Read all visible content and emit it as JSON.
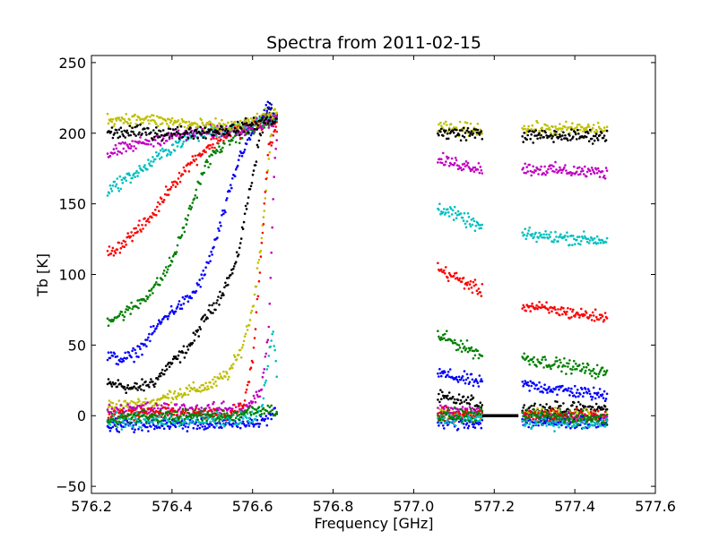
{
  "chart_data": {
    "type": "scatter",
    "title": "Spectra from 2011-02-15",
    "xlabel": "Frequency [GHz]",
    "ylabel": "Tb [K]",
    "xlim": [
      576.2,
      577.6
    ],
    "ylim": [
      -55,
      255
    ],
    "x_ticks": [
      "576.2",
      "576.4",
      "576.6",
      "576.8",
      "577.0",
      "577.2",
      "577.4",
      "577.6"
    ],
    "y_ticks": [
      "250",
      "200",
      "150",
      "100",
      "50",
      "0",
      "−50"
    ],
    "grid": false,
    "legend": "none",
    "line_segment": {
      "x": [
        577.17,
        577.26
      ],
      "y": [
        0,
        0
      ],
      "color": "#000000"
    },
    "series": [
      {
        "color": "#000000",
        "left": [
          [
            576.24,
            22
          ],
          [
            576.27,
            22
          ],
          [
            576.3,
            19
          ],
          [
            576.33,
            21
          ],
          [
            576.36,
            25
          ],
          [
            576.39,
            35
          ],
          [
            576.42,
            42
          ],
          [
            576.45,
            52
          ],
          [
            576.48,
            68
          ],
          [
            576.52,
            85
          ],
          [
            576.56,
            108
          ],
          [
            576.58,
            140
          ],
          [
            576.6,
            170
          ],
          [
            576.62,
            200
          ],
          [
            576.64,
            218
          ],
          [
            576.66,
            210
          ]
        ],
        "mid": [
          [
            577.06,
            13
          ],
          [
            577.17,
            8
          ]
        ],
        "right": [
          [
            577.27,
            5
          ],
          [
            577.48,
            5
          ]
        ]
      },
      {
        "color": "#bfbf00",
        "left": [
          [
            576.24,
            7
          ],
          [
            576.3,
            7
          ],
          [
            576.36,
            10
          ],
          [
            576.4,
            15
          ],
          [
            576.45,
            18
          ],
          [
            576.5,
            22
          ],
          [
            576.54,
            30
          ],
          [
            576.57,
            45
          ],
          [
            576.6,
            75
          ],
          [
            576.62,
            120
          ],
          [
            576.64,
            180
          ],
          [
            576.65,
            215
          ],
          [
            576.66,
            210
          ]
        ],
        "mid": [
          [
            577.06,
            2
          ],
          [
            577.17,
            0
          ]
        ],
        "right": [
          [
            577.27,
            1
          ],
          [
            577.48,
            0
          ]
        ]
      },
      {
        "color": "#0000ff",
        "left": [
          [
            576.24,
            42
          ],
          [
            576.27,
            40
          ],
          [
            576.3,
            42
          ],
          [
            576.33,
            50
          ],
          [
            576.36,
            62
          ],
          [
            576.39,
            72
          ],
          [
            576.42,
            78
          ],
          [
            576.45,
            85
          ],
          [
            576.48,
            100
          ],
          [
            576.51,
            125
          ],
          [
            576.54,
            155
          ],
          [
            576.57,
            185
          ],
          [
            576.6,
            200
          ],
          [
            576.64,
            218
          ],
          [
            576.66,
            210
          ]
        ],
        "mid": [
          [
            577.06,
            30
          ],
          [
            577.17,
            23
          ]
        ],
        "right": [
          [
            577.27,
            22
          ],
          [
            577.48,
            14
          ]
        ]
      },
      {
        "color": "#008000",
        "left": [
          [
            576.24,
            68
          ],
          [
            576.28,
            72
          ],
          [
            576.31,
            78
          ],
          [
            576.34,
            86
          ],
          [
            576.37,
            95
          ],
          [
            576.4,
            110
          ],
          [
            576.42,
            125
          ],
          [
            576.45,
            150
          ],
          [
            576.48,
            175
          ],
          [
            576.51,
            188
          ],
          [
            576.54,
            195
          ],
          [
            576.58,
            200
          ],
          [
            576.62,
            205
          ],
          [
            576.66,
            210
          ]
        ],
        "mid": [
          [
            577.06,
            57
          ],
          [
            577.17,
            43
          ]
        ],
        "right": [
          [
            577.27,
            41
          ],
          [
            577.48,
            30
          ]
        ]
      },
      {
        "color": "#ff0000",
        "left": [
          [
            576.24,
            115
          ],
          [
            576.27,
            120
          ],
          [
            576.3,
            128
          ],
          [
            576.33,
            135
          ],
          [
            576.36,
            145
          ],
          [
            576.39,
            160
          ],
          [
            576.42,
            170
          ],
          [
            576.45,
            180
          ],
          [
            576.48,
            188
          ],
          [
            576.51,
            195
          ],
          [
            576.54,
            200
          ],
          [
            576.58,
            203
          ],
          [
            576.62,
            207
          ],
          [
            576.66,
            210
          ]
        ],
        "mid": [
          [
            577.06,
            104
          ],
          [
            577.17,
            88
          ]
        ],
        "right": [
          [
            577.27,
            78
          ],
          [
            577.48,
            69
          ]
        ]
      },
      {
        "color": "#00bfbf",
        "left": [
          [
            576.24,
            160
          ],
          [
            576.27,
            165
          ],
          [
            576.3,
            170
          ],
          [
            576.33,
            175
          ],
          [
            576.36,
            182
          ],
          [
            576.4,
            190
          ],
          [
            576.44,
            197
          ],
          [
            576.48,
            200
          ],
          [
            576.54,
            203
          ],
          [
            576.6,
            206
          ],
          [
            576.66,
            210
          ]
        ],
        "mid": [
          [
            577.06,
            148
          ],
          [
            577.17,
            133
          ]
        ],
        "right": [
          [
            577.27,
            128
          ],
          [
            577.48,
            124
          ]
        ]
      },
      {
        "color": "#bf00bf",
        "left": [
          [
            576.24,
            185
          ],
          [
            576.28,
            189
          ],
          [
            576.32,
            193
          ],
          [
            576.36,
            196
          ],
          [
            576.4,
            198
          ],
          [
            576.46,
            200
          ],
          [
            576.54,
            202
          ],
          [
            576.6,
            205
          ],
          [
            576.66,
            210
          ]
        ],
        "mid": [
          [
            577.06,
            181
          ],
          [
            577.17,
            175
          ]
        ],
        "right": [
          [
            577.27,
            175
          ],
          [
            577.48,
            172
          ]
        ]
      },
      {
        "color": "#bfbf00",
        "left": [
          [
            576.24,
            210
          ],
          [
            576.32,
            210
          ],
          [
            576.4,
            208
          ],
          [
            576.48,
            205
          ],
          [
            576.56,
            205
          ],
          [
            576.62,
            210
          ],
          [
            576.66,
            215
          ]
        ],
        "mid": [
          [
            577.06,
            203
          ],
          [
            577.17,
            203
          ]
        ],
        "right": [
          [
            577.27,
            203
          ],
          [
            577.48,
            203
          ]
        ]
      },
      {
        "color": "#000000",
        "left": [
          [
            576.24,
            200
          ],
          [
            576.32,
            201
          ],
          [
            576.4,
            200
          ],
          [
            576.48,
            201
          ],
          [
            576.56,
            203
          ],
          [
            576.62,
            208
          ],
          [
            576.66,
            210
          ]
        ],
        "mid": [
          [
            577.06,
            200
          ],
          [
            577.17,
            200
          ]
        ],
        "right": [
          [
            577.27,
            198
          ],
          [
            577.48,
            198
          ]
        ]
      },
      {
        "color": "#bf00bf",
        "left": [
          [
            576.24,
            4
          ],
          [
            576.4,
            5
          ],
          [
            576.5,
            4
          ],
          [
            576.58,
            6
          ],
          [
            576.62,
            15
          ],
          [
            576.64,
            60
          ],
          [
            576.655,
            180
          ],
          [
            576.66,
            200
          ]
        ],
        "mid": [
          [
            577.06,
            4
          ],
          [
            577.17,
            2
          ]
        ],
        "right": [
          [
            577.27,
            0
          ],
          [
            577.48,
            -2
          ]
        ]
      },
      {
        "color": "#ff0000",
        "left": [
          [
            576.24,
            0
          ],
          [
            576.4,
            2
          ],
          [
            576.54,
            0
          ],
          [
            576.58,
            10
          ],
          [
            576.6,
            40
          ],
          [
            576.62,
            110
          ],
          [
            576.64,
            190
          ],
          [
            576.66,
            205
          ]
        ],
        "mid": [
          [
            577.06,
            0
          ],
          [
            577.17,
            0
          ]
        ],
        "right": [
          [
            577.27,
            0
          ],
          [
            577.48,
            0
          ]
        ]
      },
      {
        "color": "#0000ff",
        "left": [
          [
            576.24,
            -7
          ],
          [
            576.4,
            -6
          ],
          [
            576.55,
            -6
          ],
          [
            576.62,
            -4
          ],
          [
            576.66,
            2
          ]
        ],
        "mid": [
          [
            577.06,
            -5
          ],
          [
            577.17,
            -5
          ]
        ],
        "right": [
          [
            577.27,
            -5
          ],
          [
            577.48,
            -5
          ]
        ]
      },
      {
        "color": "#00bfbf",
        "left": [
          [
            576.24,
            -4
          ],
          [
            576.4,
            -3
          ],
          [
            576.55,
            -3
          ],
          [
            576.62,
            0
          ],
          [
            576.65,
            60
          ],
          [
            576.66,
            30
          ]
        ],
        "mid": [
          [
            577.06,
            -2
          ],
          [
            577.17,
            -2
          ]
        ],
        "right": [
          [
            577.27,
            -4
          ],
          [
            577.48,
            -6
          ]
        ]
      },
      {
        "color": "#008000",
        "left": [
          [
            576.24,
            -2
          ],
          [
            576.4,
            0
          ],
          [
            576.55,
            0
          ],
          [
            576.62,
            5
          ],
          [
            576.66,
            3
          ]
        ],
        "mid": [
          [
            577.06,
            0
          ],
          [
            577.17,
            0
          ]
        ],
        "right": [
          [
            577.27,
            0
          ],
          [
            577.48,
            -2
          ]
        ]
      }
    ]
  }
}
